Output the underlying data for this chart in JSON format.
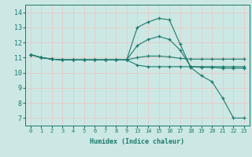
{
  "xlabel": "Humidex (Indice chaleur)",
  "bg_color": "#cce8e4",
  "line_color": "#1a7a6e",
  "grid_color": "#e8c8c8",
  "x_labels": [
    "0",
    "1",
    "2",
    "3",
    "4",
    "5",
    "6",
    "7",
    "8",
    "9",
    "13",
    "14",
    "15",
    "16",
    "17",
    "18",
    "19",
    "20",
    "21",
    "22",
    "23"
  ],
  "xlim": [
    -0.5,
    20.5
  ],
  "ylim": [
    6.5,
    14.5
  ],
  "y_ticks": [
    7,
    8,
    9,
    10,
    11,
    12,
    13,
    14
  ],
  "lines": [
    {
      "xi": [
        0,
        1,
        2,
        3,
        4,
        5,
        6,
        7,
        8,
        9,
        10,
        11,
        12,
        13,
        14,
        15,
        16,
        17,
        18,
        19,
        20
      ],
      "y": [
        11.2,
        11.0,
        10.9,
        10.85,
        10.85,
        10.85,
        10.85,
        10.85,
        10.85,
        10.85,
        13.0,
        13.35,
        13.6,
        13.5,
        11.9,
        10.35,
        9.8,
        9.4,
        8.3,
        7.0,
        7.0
      ]
    },
    {
      "xi": [
        0,
        1,
        2,
        3,
        4,
        5,
        6,
        7,
        8,
        9,
        10,
        11,
        12,
        13,
        14,
        15,
        16,
        17,
        18,
        19,
        20
      ],
      "y": [
        11.2,
        11.0,
        10.9,
        10.85,
        10.85,
        10.85,
        10.85,
        10.85,
        10.85,
        10.85,
        11.8,
        12.2,
        12.4,
        12.2,
        11.5,
        10.4,
        10.35,
        10.35,
        10.3,
        10.3,
        10.3
      ]
    },
    {
      "xi": [
        0,
        1,
        2,
        3,
        4,
        5,
        6,
        7,
        8,
        9,
        10,
        11,
        12,
        13,
        14,
        15,
        16,
        17,
        18,
        19,
        20
      ],
      "y": [
        11.2,
        11.0,
        10.9,
        10.85,
        10.85,
        10.85,
        10.85,
        10.85,
        10.85,
        10.85,
        11.0,
        11.1,
        11.1,
        11.05,
        10.95,
        10.9,
        10.9,
        10.9,
        10.9,
        10.9,
        10.9
      ]
    },
    {
      "xi": [
        0,
        1,
        2,
        3,
        4,
        5,
        6,
        7,
        8,
        9,
        10,
        11,
        12,
        13,
        14,
        15,
        16,
        17,
        18,
        19,
        20
      ],
      "y": [
        11.2,
        11.0,
        10.9,
        10.85,
        10.85,
        10.85,
        10.85,
        10.85,
        10.85,
        10.85,
        10.5,
        10.4,
        10.4,
        10.4,
        10.4,
        10.4,
        10.4,
        10.4,
        10.4,
        10.4,
        10.4
      ]
    }
  ]
}
